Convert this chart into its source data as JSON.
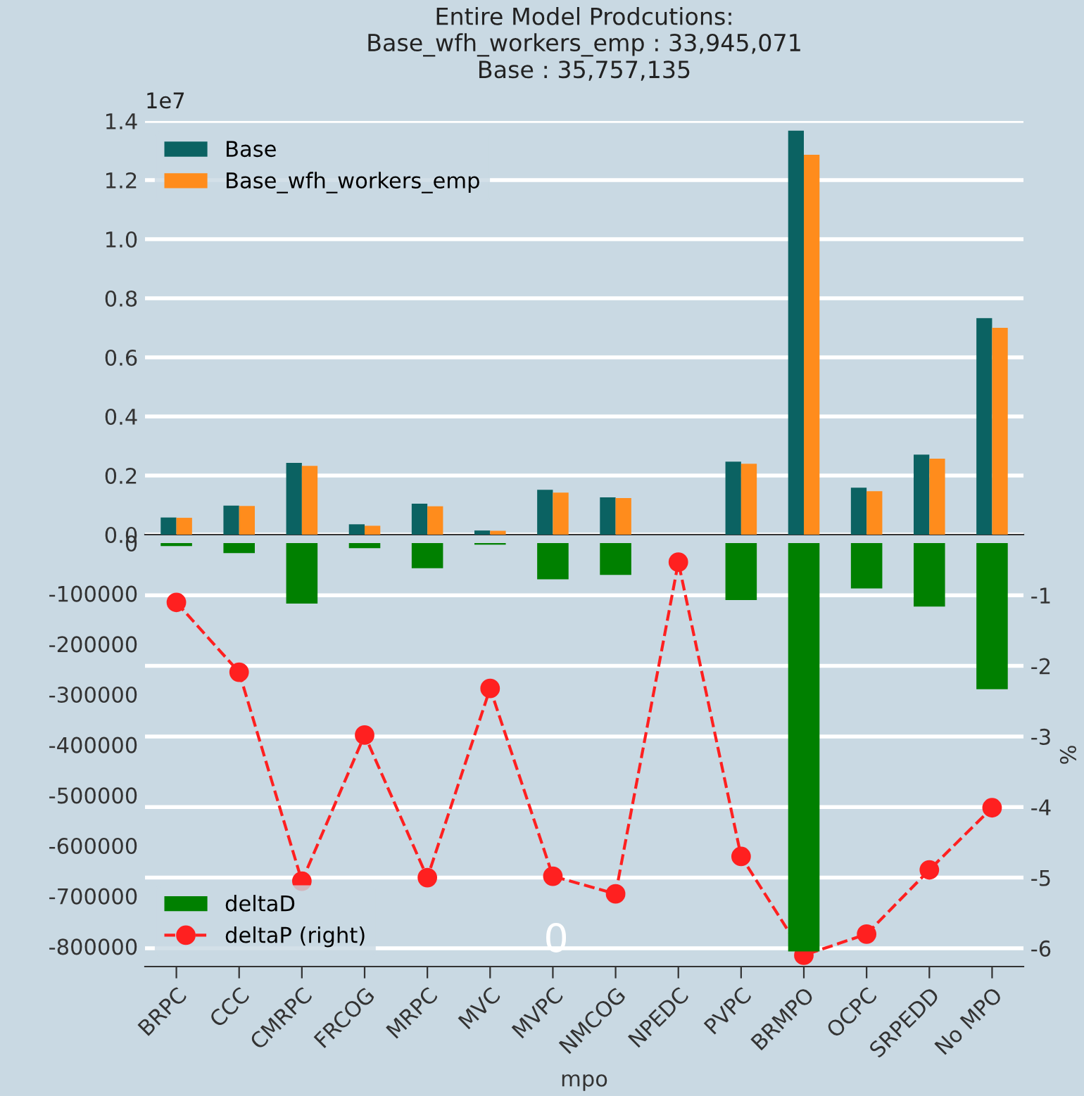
{
  "chart_data": [
    {
      "type": "bar",
      "title": "Entire Model Prodcutions:\nBase_wfh_workers_emp : 33,945,071\nBase : 35,757,135",
      "categories": [
        null,
        null,
        null,
        null,
        null,
        null,
        null,
        null,
        null,
        null,
        null,
        null,
        null,
        null
      ],
      "series": [
        {
          "name": "Base",
          "color": "#0b6262",
          "values": [
            0.058,
            0.098,
            0.243,
            0.035,
            0.105,
            0.014,
            0.152,
            0.126,
            null,
            0.247,
            1.367,
            0.159,
            0.271,
            0.733
          ]
        },
        {
          "name": "Base_wfh_workers_emp",
          "color": "#ff8c1c",
          "values": [
            0.057,
            0.097,
            0.233,
            0.03,
            0.096,
            0.013,
            0.142,
            0.124,
            null,
            0.24,
            1.286,
            0.147,
            0.257,
            0.7
          ]
        }
      ],
      "ylim": [
        0,
        1.4
      ],
      "yticks": [
        {
          "value": 0,
          "label": "0.0"
        },
        0.2,
        0.4,
        0.6,
        0.8,
        {
          "value": 1,
          "label": "1.0"
        },
        1.2,
        1.4
      ],
      "annotations": [
        "1e7"
      ],
      "tick_labels": "y",
      "legend": "top left",
      "grid": "y"
    },
    {
      "type": "bar",
      "xlabel": "mpo",
      "y2label": "%",
      "categories": [
        "BRPC",
        "CCC",
        "CMRPC",
        "FRCOG",
        "MRPC",
        "MVC",
        "MVPC",
        "NMCOG",
        "NPEDC",
        "PVPC",
        "BRMPO",
        "OCPC",
        "SRPEDD",
        "No MPO"
      ],
      "series": [
        {
          "name": "deltaD",
          "color": "#008000",
          "values": [
            -6000,
            -20000,
            -120000,
            -10000,
            -50000,
            -3000,
            -72000,
            -63000,
            0,
            -113000,
            -810000,
            -90000,
            -126000,
            -290000
          ]
        },
        {
          "name": "deltaP (right)",
          "type": "line",
          "axis": "y2",
          "color": "#ff2020",
          "marker": "circle",
          "line_style": "dashed",
          "values": [
            -1.1,
            -2.09,
            -5.05,
            -2.98,
            -5.0,
            -2.32,
            -4.98,
            -5.23,
            -0.53,
            -4.7,
            -6.1,
            -5.8,
            -4.89,
            -4.01
          ]
        }
      ],
      "ylim": [
        -840000,
        0
      ],
      "yticks": [
        0,
        -100000,
        -200000,
        -300000,
        -400000,
        -500000,
        -600000,
        -700000,
        -800000
      ],
      "y2lim": [
        -6.26,
        -0.26
      ],
      "y2ticks": [
        -1,
        -2,
        -3,
        -4,
        -5,
        -6
      ],
      "annotations": [
        "0"
      ],
      "legend": "bottom left",
      "grid": "y2"
    }
  ]
}
